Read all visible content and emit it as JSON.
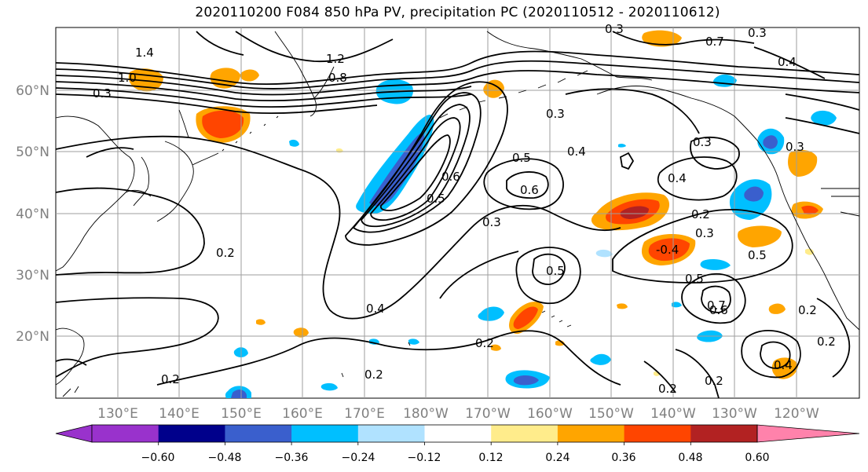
{
  "title": "2020110200 F084 850 hPa PV, precipitation PC (2020110512 - 2020110612)",
  "lat_labels": [
    "60°N",
    "50°N",
    "40°N",
    "30°N",
    "20°N"
  ],
  "lon_labels": [
    "130°E",
    "140°E",
    "150°E",
    "160°E",
    "170°E",
    "180°W",
    "170°W",
    "160°W",
    "150°W",
    "140°W",
    "130°W",
    "120°W"
  ],
  "colorbar": {
    "ticks": [
      "−0.60",
      "−0.48",
      "−0.36",
      "−0.24",
      "−0.12",
      "0.12",
      "0.24",
      "0.36",
      "0.48",
      "0.60"
    ],
    "colors": [
      "#9932cc",
      "#00008b",
      "#3a5fcd",
      "#00bfff",
      "#b0e2ff",
      "#ffffff",
      "#ffec8b",
      "#ffa500",
      "#ff4500",
      "#b22222",
      "#ff82ab"
    ]
  },
  "contour_labels": [
    "1.4",
    "1.0",
    "0.3",
    "0.2",
    "0.8",
    "1.2",
    "0.4",
    "0.5",
    "0.6",
    "0.3",
    "0.2",
    "0.4",
    "0.5",
    "0.6",
    "0.3",
    "0.4",
    "0.5",
    "0.2",
    "0.2",
    "0.2",
    "0.3",
    "0.4",
    "0.3",
    "0.2",
    "0.7",
    "0.6",
    "0.2",
    "0.3",
    "0.4",
    "0.2",
    "0.3",
    "0.5",
    "0.7",
    "0.5",
    "0.3",
    "-0.4",
    "0.2"
  ]
}
